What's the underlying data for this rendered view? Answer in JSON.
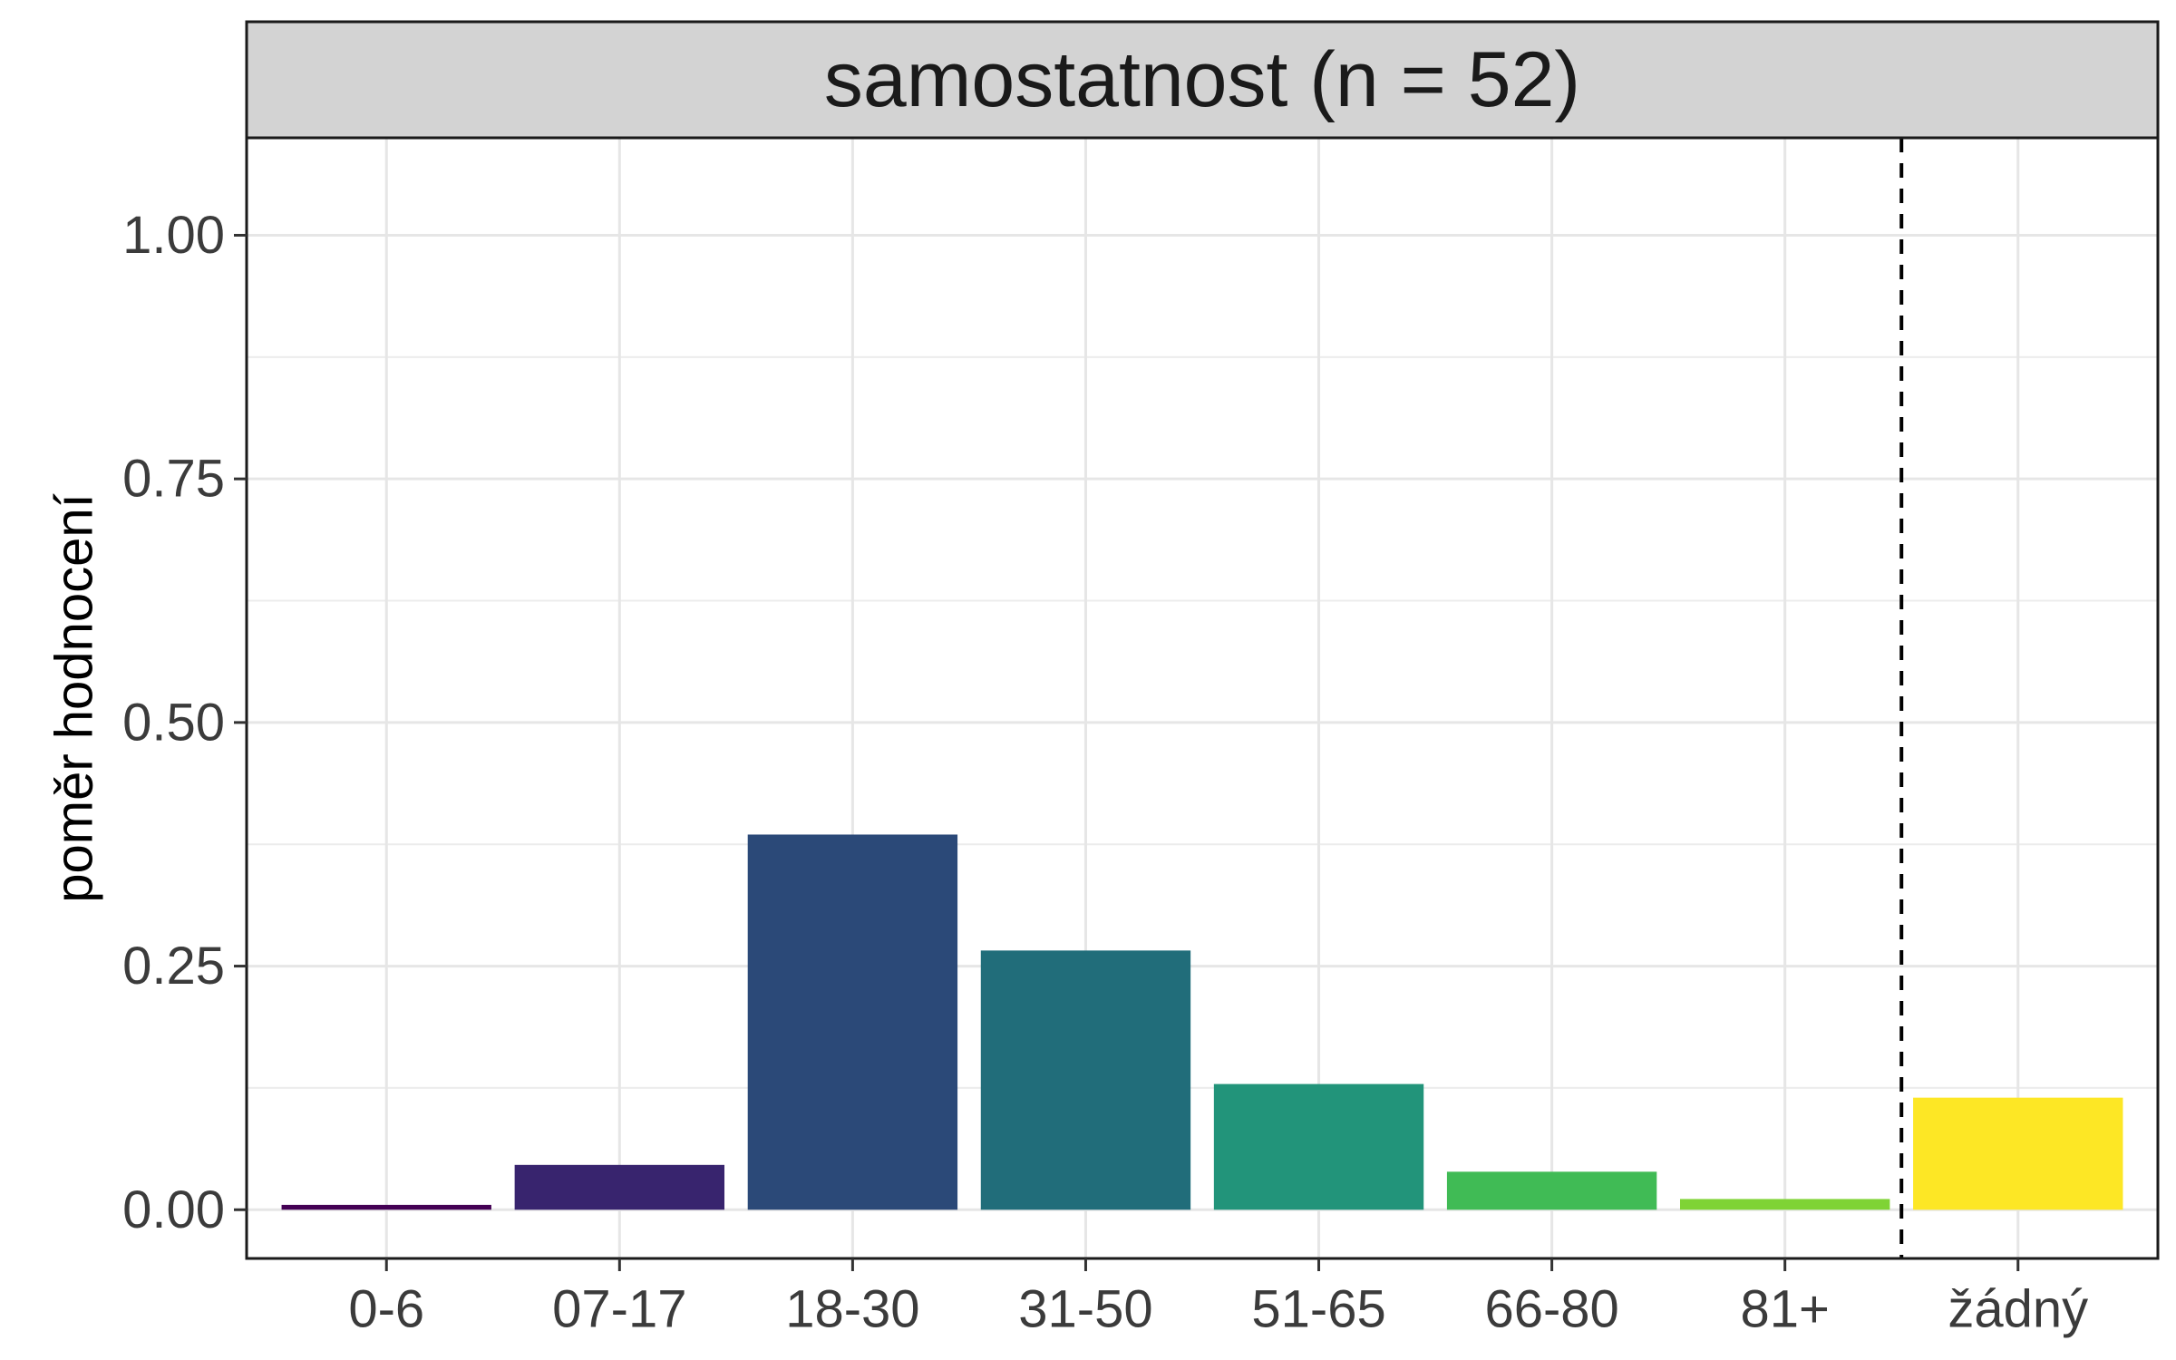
{
  "chart_data": {
    "type": "bar",
    "title": "samostatnost (n = 52)",
    "xlabel": "",
    "ylabel": "poměr hodnocení",
    "categories": [
      "0-6",
      "07-17",
      "18-30",
      "31-50",
      "51-65",
      "66-80",
      "81+",
      "žádný"
    ],
    "values": [
      0.005,
      0.046,
      0.385,
      0.266,
      0.129,
      0.039,
      0.011,
      0.115
    ],
    "colors": [
      "#440154",
      "#38246e",
      "#2b4978",
      "#216d7a",
      "#22947a",
      "#40bb55",
      "#7fd335",
      "#fde725"
    ],
    "ylim": [
      -0.05,
      1.1
    ],
    "yticks": [
      "0.00",
      "0.25",
      "0.50",
      "0.75",
      "1.00"
    ],
    "separator_after": "81+",
    "separator_style": "dashed",
    "grid": true,
    "strip_color": "#d3d3d3"
  }
}
